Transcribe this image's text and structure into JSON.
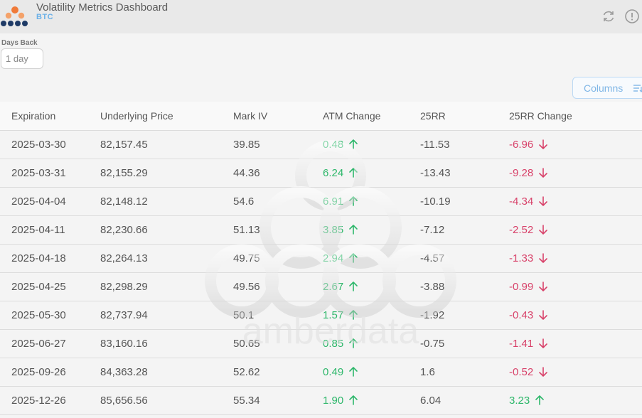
{
  "header": {
    "title": "Volatility Metrics Dashboard",
    "subtitle": "BTC",
    "logo_icon": "amberdata-logo-icon",
    "refresh_icon": "refresh-icon",
    "info_icon": "info-icon"
  },
  "filters": {
    "days_back_label": "Days Back",
    "days_back_value": "1 day"
  },
  "toolbar": {
    "columns_label": "Columns",
    "columns_icon": "filter-lines-icon"
  },
  "watermark": {
    "text": "amberdata"
  },
  "colors": {
    "up": "#2db76a",
    "down": "#d8426a",
    "accent": "#7fb6e6"
  },
  "table": {
    "columns": [
      "Expiration",
      "Underlying Price",
      "Mark IV",
      "ATM Change",
      "25RR",
      "25RR Change"
    ],
    "rows": [
      {
        "expiration": "2025-03-30",
        "price": "82,157.45",
        "mark_iv": "39.85",
        "atm_change": "0.48",
        "atm_dir": "up",
        "rr25": "-11.53",
        "rr25_change": "-6.96",
        "rr25_dir": "down"
      },
      {
        "expiration": "2025-03-31",
        "price": "82,155.29",
        "mark_iv": "44.36",
        "atm_change": "6.24",
        "atm_dir": "up",
        "rr25": "-13.43",
        "rr25_change": "-9.28",
        "rr25_dir": "down"
      },
      {
        "expiration": "2025-04-04",
        "price": "82,148.12",
        "mark_iv": "54.6",
        "atm_change": "6.91",
        "atm_dir": "up",
        "rr25": "-10.19",
        "rr25_change": "-4.34",
        "rr25_dir": "down"
      },
      {
        "expiration": "2025-04-11",
        "price": "82,230.66",
        "mark_iv": "51.13",
        "atm_change": "3.85",
        "atm_dir": "up",
        "rr25": "-7.12",
        "rr25_change": "-2.52",
        "rr25_dir": "down"
      },
      {
        "expiration": "2025-04-18",
        "price": "82,264.13",
        "mark_iv": "49.75",
        "atm_change": "2.94",
        "atm_dir": "up",
        "rr25": "-4.57",
        "rr25_change": "-1.33",
        "rr25_dir": "down"
      },
      {
        "expiration": "2025-04-25",
        "price": "82,298.29",
        "mark_iv": "49.56",
        "atm_change": "2.67",
        "atm_dir": "up",
        "rr25": "-3.88",
        "rr25_change": "-0.99",
        "rr25_dir": "down"
      },
      {
        "expiration": "2025-05-30",
        "price": "82,737.94",
        "mark_iv": "50.1",
        "atm_change": "1.57",
        "atm_dir": "up",
        "rr25": "-1.92",
        "rr25_change": "-0.43",
        "rr25_dir": "down"
      },
      {
        "expiration": "2025-06-27",
        "price": "83,160.16",
        "mark_iv": "50.65",
        "atm_change": "0.85",
        "atm_dir": "up",
        "rr25": "-0.75",
        "rr25_change": "-1.41",
        "rr25_dir": "down"
      },
      {
        "expiration": "2025-09-26",
        "price": "84,363.28",
        "mark_iv": "52.62",
        "atm_change": "0.49",
        "atm_dir": "up",
        "rr25": "1.6",
        "rr25_change": "-0.52",
        "rr25_dir": "down"
      },
      {
        "expiration": "2025-12-26",
        "price": "85,656.56",
        "mark_iv": "55.34",
        "atm_change": "1.90",
        "atm_dir": "up",
        "rr25": "6.04",
        "rr25_change": "3.23",
        "rr25_dir": "up"
      }
    ]
  }
}
